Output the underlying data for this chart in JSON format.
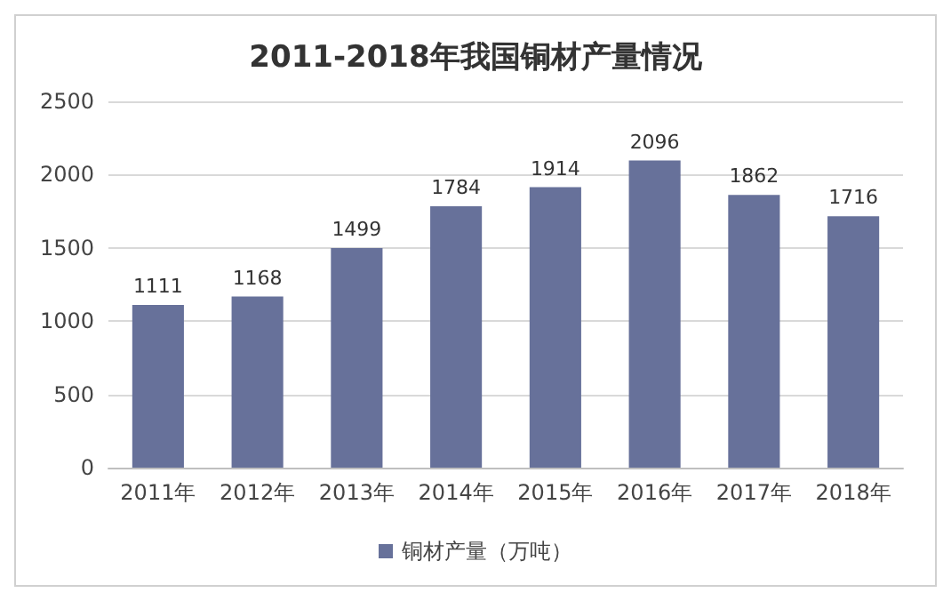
{
  "chart_data": {
    "type": "bar",
    "title": "2011-2018年我国铜材产量情况",
    "categories": [
      "2011年",
      "2012年",
      "2013年",
      "2014年",
      "2015年",
      "2016年",
      "2017年",
      "2018年"
    ],
    "series": [
      {
        "name": "铜材产量（万吨）",
        "color": "#67719a",
        "values": [
          1111,
          1168,
          1499,
          1784,
          1914,
          2096,
          1862,
          1716
        ]
      }
    ],
    "ylim": [
      0,
      2500
    ],
    "yticks": [
      0,
      500,
      1000,
      1500,
      2000,
      2500
    ],
    "grid": "y",
    "legend": "bottom",
    "data_labels": true
  }
}
